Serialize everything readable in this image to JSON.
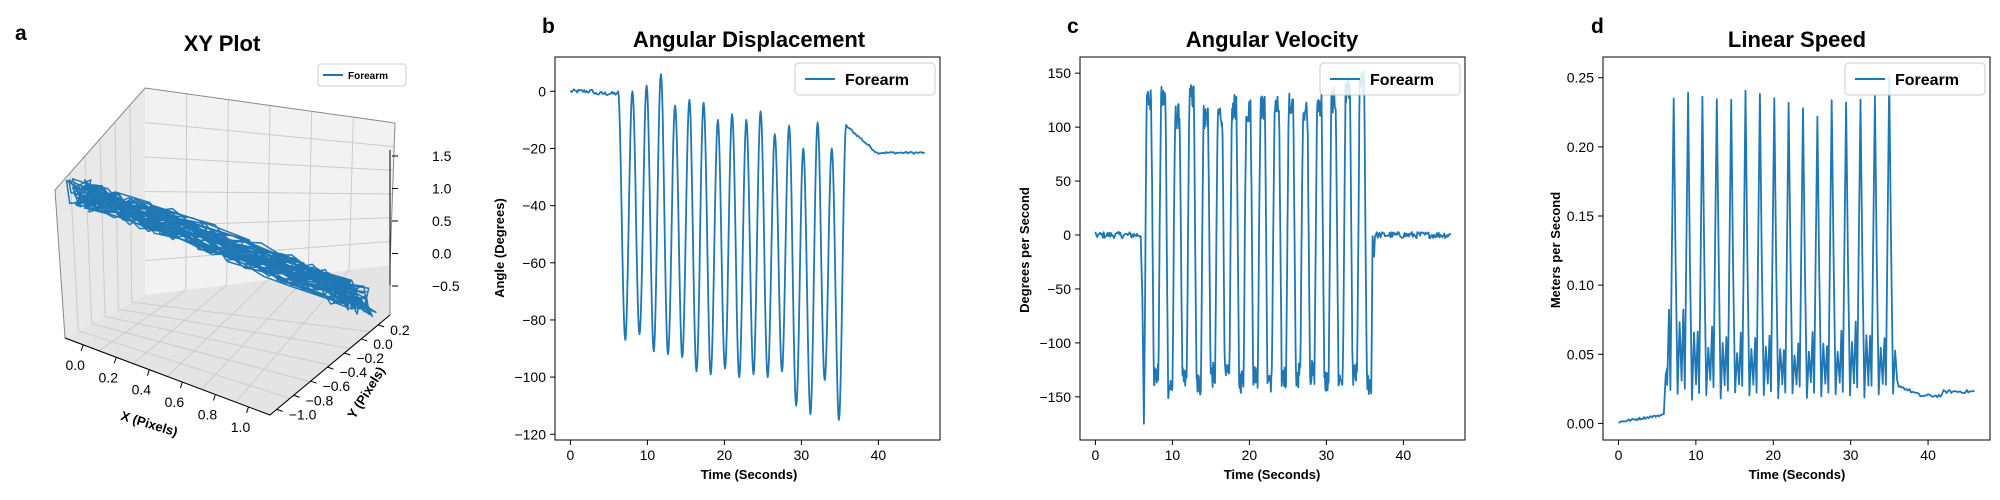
{
  "colors": {
    "series": "#1f77b4",
    "axis": "#000000",
    "pane": "#f2f2f2",
    "grid": "#cccccc"
  },
  "chart_data": [
    {
      "panel_label": "a",
      "type": "line3d",
      "title": "XY Plot",
      "xlabel": "X (Pixels)",
      "ylabel": "Y (Pixels)",
      "xticks": [
        "0.0",
        "0.2",
        "0.4",
        "0.6",
        "0.8",
        "1.0"
      ],
      "yticks": [
        "−1.0",
        "−0.8",
        "−0.6",
        "−0.4",
        "−0.2",
        "0.0",
        "0.2"
      ],
      "zticks": [
        "−0.5",
        "0.0",
        "0.5",
        "1.0",
        "1.5"
      ],
      "xlim": [
        -0.1,
        1.05
      ],
      "ylim": [
        -1.05,
        0.25
      ],
      "zlim": [
        -0.7,
        1.6
      ],
      "legend": [
        "Forearm"
      ],
      "legend_position": "top-right",
      "series": [
        {
          "name": "Forearm",
          "description_points": [
            [
              0.0,
              -0.05,
              0.9
            ],
            [
              0.2,
              -0.2,
              0.7
            ],
            [
              0.4,
              -0.4,
              0.5
            ],
            [
              0.6,
              -0.55,
              0.3
            ],
            [
              0.8,
              -0.75,
              0.1
            ],
            [
              1.0,
              -0.95,
              -0.1
            ]
          ]
        }
      ]
    },
    {
      "panel_label": "b",
      "type": "line",
      "title": "Angular Displacement",
      "xlabel": "Time (Seconds)",
      "ylabel": "Angle (Degrees)",
      "xlim": [
        -2,
        48
      ],
      "ylim": [
        -122,
        12
      ],
      "xticks": [
        0,
        10,
        20,
        30,
        40
      ],
      "yticks": [
        0,
        -20,
        -40,
        -60,
        -80,
        -100,
        -120
      ],
      "legend": [
        "Forearm"
      ],
      "legend_position": "top-right",
      "series": [
        {
          "name": "Forearm",
          "description": "flat near 0 until ~6 s, ~16 oscillation cycles (peak ~0, troughs -85 to -115) between 6 and 36 s, then settles near -21",
          "baseline_start": 0,
          "active_start": 6.2,
          "active_end": 35.8,
          "cycles": [
            {
              "peak": 0,
              "trough": -87
            },
            {
              "peak": 2,
              "trough": -85
            },
            {
              "peak": 6,
              "trough": -91
            },
            {
              "peak": -5,
              "trough": -92
            },
            {
              "peak": -3,
              "trough": -93
            },
            {
              "peak": -4,
              "trough": -98
            },
            {
              "peak": -10,
              "trough": -99
            },
            {
              "peak": -8,
              "trough": -97
            },
            {
              "peak": -10,
              "trough": -100
            },
            {
              "peak": -7,
              "trough": -99
            },
            {
              "peak": -15,
              "trough": -100
            },
            {
              "peak": -12,
              "trough": -98
            },
            {
              "peak": -20,
              "trough": -110
            },
            {
              "peak": -11,
              "trough": -113
            },
            {
              "peak": -20,
              "trough": -101
            },
            {
              "peak": -12,
              "trough": -115
            }
          ],
          "baseline_end": -21.5
        }
      ]
    },
    {
      "panel_label": "c",
      "type": "line",
      "title": "Angular Velocity",
      "xlabel": "Time (Seconds)",
      "ylabel": "Degrees per Second",
      "xlim": [
        -2,
        48
      ],
      "ylim": [
        -190,
        165
      ],
      "xticks": [
        0,
        10,
        20,
        30,
        40
      ],
      "yticks": [
        150,
        100,
        50,
        0,
        -50,
        -100,
        -150
      ],
      "legend": [
        "Forearm"
      ],
      "legend_position": "top-right",
      "series": [
        {
          "name": "Forearm",
          "description": "noise near 0 until ~6 s, dip to -175, then ~16 square-ish oscillations between about +125 and -140, back to noise near 0 after ~36 s",
          "active_start": 6.2,
          "active_end": 36.0,
          "min_value": -175,
          "peaks": [
            125,
            126,
            110,
            128,
            110,
            112,
            118,
            115,
            118,
            117,
            120,
            116,
            122,
            125,
            135,
            140
          ],
          "troughs": [
            -130,
            -140,
            -135,
            -138,
            -130,
            -132,
            -135,
            -130,
            -134,
            -131,
            -130,
            -128,
            -135,
            -133,
            -130,
            -137
          ]
        }
      ]
    },
    {
      "panel_label": "d",
      "type": "line",
      "title": "Linear Speed",
      "xlabel": "Time (Seconds)",
      "ylabel": "Meters per Second",
      "xlim": [
        -2,
        48
      ],
      "ylim": [
        -0.012,
        0.265
      ],
      "xticks": [
        0,
        10,
        20,
        30,
        40
      ],
      "yticks": [
        0.0,
        0.05,
        0.1,
        0.15,
        0.2,
        0.25
      ],
      "legend": [
        "Forearm"
      ],
      "legend_position": "top-right",
      "series": [
        {
          "name": "Forearm",
          "description": "near 0 rising slowly until ~6 s, then ~16 spikes up to about 0.24 with secondary peaks 0.04-0.09, settles near 0.02 after ~36 s",
          "active_start": 6.3,
          "active_end": 36.0,
          "peaks": [
            0.237,
            0.239,
            0.239,
            0.237,
            0.237,
            0.238,
            0.236,
            0.236,
            0.233,
            0.226,
            0.22,
            0.236,
            0.234,
            0.236,
            0.24,
            0.25
          ],
          "minor_peaks": [
            0.085,
            0.08,
            0.065,
            0.07,
            0.06,
            0.065,
            0.062,
            0.062,
            0.055,
            0.06,
            0.065,
            0.058,
            0.07,
            0.075,
            0.065,
            0.06
          ],
          "end_level": 0.022
        }
      ]
    }
  ]
}
